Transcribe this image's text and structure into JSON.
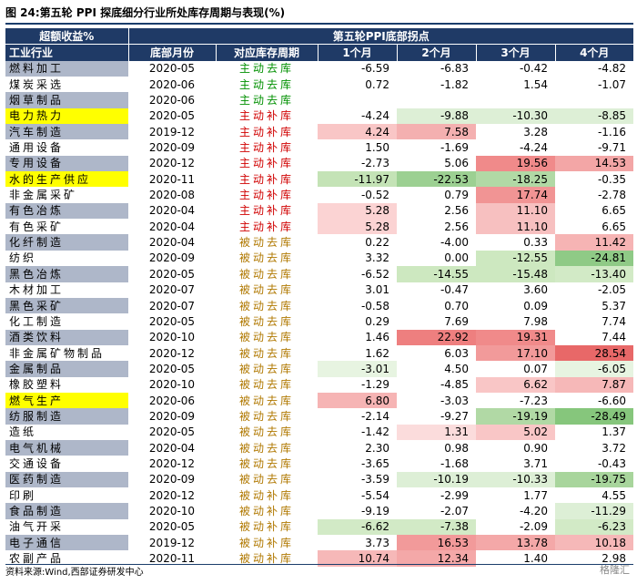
{
  "title": "图 24:第五轮 PPI 探底细分行业所处库存周期与表现(%)",
  "source": "资料来源:Wind,西部证券研发中心",
  "watermark": "格隆汇",
  "colors": {
    "header_bg": "#1f3a66",
    "yellow": "#ffff00",
    "slate": "#aeb7c9",
    "active_destock": "#009000",
    "active_restock": "#d00000",
    "passive_destock": "#b07800"
  },
  "header": {
    "excess_return": "超额收益%",
    "industry": "工业行业",
    "bottom_title": "第五轮PPI底部拐点",
    "bottom_month": "底部月份",
    "stage": "对应库存周期",
    "m1": "1个月",
    "m2": "2个月",
    "m3": "3个月",
    "m4": "4个月"
  },
  "rows": [
    {
      "industry": "燃料加工",
      "month": "2020-05",
      "stage": "主动去库",
      "stage_type": "ad",
      "hl": "slate",
      "v": [
        "-6.59",
        "-6.83",
        "-0.42",
        "-4.82"
      ],
      "bg": [
        "#ffffff",
        "#ffffff",
        "#ffffff",
        "#ffffff"
      ]
    },
    {
      "industry": "煤炭采选",
      "month": "2020-06",
      "stage": "主动去库",
      "stage_type": "ad",
      "hl": "none",
      "v": [
        "0.72",
        "-1.82",
        "1.54",
        "-1.07"
      ],
      "bg": [
        "#ffffff",
        "#ffffff",
        "#ffffff",
        "#ffffff"
      ]
    },
    {
      "industry": "烟草制品",
      "month": "2020-06",
      "stage": "主动去库",
      "stage_type": "ad",
      "hl": "slate",
      "v": [
        "",
        "",
        "",
        ""
      ],
      "bg": [
        "#ffffff",
        "#ffffff",
        "#ffffff",
        "#ffffff"
      ]
    },
    {
      "industry": "电力热力",
      "month": "2020-05",
      "stage": "主动补库",
      "stage_type": "ar",
      "hl": "yellow",
      "v": [
        "-4.24",
        "-9.88",
        "-10.30",
        "-8.85"
      ],
      "bg": [
        "#ffffff",
        "#ddefd6",
        "#ddefd6",
        "#ddefd6"
      ]
    },
    {
      "industry": "汽车制造",
      "month": "2019-12",
      "stage": "主动补库",
      "stage_type": "ar",
      "hl": "slate",
      "v": [
        "4.24",
        "7.58",
        "3.28",
        "-1.16"
      ],
      "bg": [
        "#f9c6c6",
        "#f4b0b0",
        "#ffffff",
        "#ffffff"
      ]
    },
    {
      "industry": "通用设备",
      "month": "2020-09",
      "stage": "主动补库",
      "stage_type": "ar",
      "hl": "none",
      "v": [
        "1.50",
        "-1.69",
        "-4.24",
        "-9.71"
      ],
      "bg": [
        "#ffffff",
        "#ffffff",
        "#ffffff",
        "#ffffff"
      ]
    },
    {
      "industry": "专用设备",
      "month": "2020-12",
      "stage": "主动补库",
      "stage_type": "ar",
      "hl": "slate",
      "v": [
        "-2.73",
        "5.06",
        "19.56",
        "14.53"
      ],
      "bg": [
        "#ffffff",
        "#ffffff",
        "#f08a8a",
        "#f3a6a6"
      ]
    },
    {
      "industry": "水的生产供应",
      "month": "2020-11",
      "stage": "主动补库",
      "stage_type": "ar",
      "hl": "yellow",
      "v": [
        "-11.97",
        "-22.53",
        "-18.25",
        "-0.35"
      ],
      "bg": [
        "#c4e3b6",
        "#9cd092",
        "#b1d9a5",
        "#ffffff"
      ]
    },
    {
      "industry": "非金属采矿",
      "month": "2020-08",
      "stage": "主动补库",
      "stage_type": "ar",
      "hl": "none",
      "v": [
        "-0.52",
        "0.79",
        "17.74",
        "-2.78"
      ],
      "bg": [
        "#ffffff",
        "#ffffff",
        "#f19494",
        "#ffffff"
      ]
    },
    {
      "industry": "有色冶炼",
      "month": "2020-04",
      "stage": "主动补库",
      "stage_type": "ar",
      "hl": "slate",
      "v": [
        "5.28",
        "2.56",
        "11.10",
        "6.65"
      ],
      "bg": [
        "#fbd3d3",
        "#ffffff",
        "#f7c0c0",
        "#ffffff"
      ]
    },
    {
      "industry": "有色采矿",
      "month": "2020-04",
      "stage": "主动补库",
      "stage_type": "ar",
      "hl": "none",
      "v": [
        "5.28",
        "2.56",
        "11.10",
        "6.65"
      ],
      "bg": [
        "#fbd3d3",
        "#ffffff",
        "#f7c0c0",
        "#ffffff"
      ]
    },
    {
      "industry": "化纤制造",
      "month": "2020-04",
      "stage": "被动去库",
      "stage_type": "pd",
      "hl": "slate",
      "v": [
        "0.22",
        "-4.00",
        "0.33",
        "11.42"
      ],
      "bg": [
        "#ffffff",
        "#ffffff",
        "#ffffff",
        "#f6b4b4"
      ]
    },
    {
      "industry": "纺织",
      "month": "2020-09",
      "stage": "被动去库",
      "stage_type": "pd",
      "hl": "none",
      "v": [
        "3.32",
        "0.00",
        "-12.55",
        "-24.81"
      ],
      "bg": [
        "#ffffff",
        "#ffffff",
        "#cde8c0",
        "#8fca86"
      ]
    },
    {
      "industry": "黑色冶炼",
      "month": "2020-05",
      "stage": "被动去库",
      "stage_type": "pd",
      "hl": "slate",
      "v": [
        "-6.52",
        "-14.55",
        "-15.48",
        "-13.40"
      ],
      "bg": [
        "#ffffff",
        "#cde8c0",
        "#cde8c0",
        "#d2eac6"
      ]
    },
    {
      "industry": "木材加工",
      "month": "2020-07",
      "stage": "被动去库",
      "stage_type": "pd",
      "hl": "none",
      "v": [
        "3.01",
        "-0.47",
        "3.60",
        "-2.05"
      ],
      "bg": [
        "#ffffff",
        "#ffffff",
        "#ffffff",
        "#ffffff"
      ]
    },
    {
      "industry": "黑色采矿",
      "month": "2020-07",
      "stage": "被动去库",
      "stage_type": "pd",
      "hl": "slate",
      "v": [
        "-0.58",
        "0.70",
        "0.09",
        "5.37"
      ],
      "bg": [
        "#ffffff",
        "#ffffff",
        "#ffffff",
        "#ffffff"
      ]
    },
    {
      "industry": "化工制造",
      "month": "2020-05",
      "stage": "被动去库",
      "stage_type": "pd",
      "hl": "none",
      "v": [
        "0.29",
        "7.69",
        "7.98",
        "7.74"
      ],
      "bg": [
        "#ffffff",
        "#ffffff",
        "#ffffff",
        "#ffffff"
      ]
    },
    {
      "industry": "酒类饮料",
      "month": "2020-10",
      "stage": "被动去库",
      "stage_type": "pd",
      "hl": "slate",
      "v": [
        "1.46",
        "22.92",
        "19.31",
        "7.44"
      ],
      "bg": [
        "#ffffff",
        "#ee7f7f",
        "#f08a8a",
        "#ffffff"
      ]
    },
    {
      "industry": "非金属矿物制品",
      "month": "2020-12",
      "stage": "被动去库",
      "stage_type": "pd",
      "hl": "none",
      "v": [
        "1.62",
        "6.03",
        "17.10",
        "28.54"
      ],
      "bg": [
        "#ffffff",
        "#ffffff",
        "#f29a9a",
        "#e86868"
      ]
    },
    {
      "industry": "金属制品",
      "month": "2020-05",
      "stage": "被动去库",
      "stage_type": "pd",
      "hl": "slate",
      "v": [
        "-3.01",
        "4.50",
        "0.07",
        "-6.05"
      ],
      "bg": [
        "#e7f4e1",
        "#ffffff",
        "#ffffff",
        "#e7f4e1"
      ]
    },
    {
      "industry": "橡胶塑料",
      "month": "2020-10",
      "stage": "被动去库",
      "stage_type": "pd",
      "hl": "none",
      "v": [
        "-1.29",
        "-4.85",
        "6.62",
        "7.87"
      ],
      "bg": [
        "#ffffff",
        "#ffffff",
        "#f9c6c6",
        "#f6b8b8"
      ]
    },
    {
      "industry": "燃气生产",
      "month": "2020-06",
      "stage": "被动去库",
      "stage_type": "pd",
      "hl": "yellow",
      "v": [
        "6.80",
        "-3.03",
        "-7.23",
        "-6.60"
      ],
      "bg": [
        "#f6b4b4",
        "#ffffff",
        "#ffffff",
        "#ffffff"
      ]
    },
    {
      "industry": "纺服制造",
      "month": "2020-09",
      "stage": "被动去库",
      "stage_type": "pd",
      "hl": "slate",
      "v": [
        "-2.14",
        "-9.27",
        "-19.19",
        "-28.49"
      ],
      "bg": [
        "#ffffff",
        "#ffffff",
        "#b1d9a5",
        "#86c67c"
      ]
    },
    {
      "industry": "造纸",
      "month": "2020-05",
      "stage": "被动去库",
      "stage_type": "pd",
      "hl": "none",
      "v": [
        "-1.42",
        "1.31",
        "5.02",
        "1.37"
      ],
      "bg": [
        "#ffffff",
        "#fbdcdc",
        "#f9c6c6",
        "#ffffff"
      ]
    },
    {
      "industry": "电气机械",
      "month": "2020-04",
      "stage": "被动去库",
      "stage_type": "pd",
      "hl": "slate",
      "v": [
        "2.30",
        "0.98",
        "0.90",
        "3.72"
      ],
      "bg": [
        "#ffffff",
        "#ffffff",
        "#ffffff",
        "#ffffff"
      ]
    },
    {
      "industry": "交通设备",
      "month": "2020-12",
      "stage": "被动去库",
      "stage_type": "pd",
      "hl": "none",
      "v": [
        "-3.65",
        "-1.68",
        "3.71",
        "-0.43"
      ],
      "bg": [
        "#ffffff",
        "#ffffff",
        "#ffffff",
        "#ffffff"
      ]
    },
    {
      "industry": "医药制造",
      "month": "2020-09",
      "stage": "被动去库",
      "stage_type": "pd",
      "hl": "slate",
      "v": [
        "-3.59",
        "-10.19",
        "-10.33",
        "-19.75"
      ],
      "bg": [
        "#ffffff",
        "#ddefd6",
        "#ddefd6",
        "#a8d59c"
      ]
    },
    {
      "industry": "印刷",
      "month": "2020-12",
      "stage": "被动补库",
      "stage_type": "pr",
      "hl": "none",
      "v": [
        "-5.54",
        "-2.99",
        "1.77",
        "4.55"
      ],
      "bg": [
        "#ffffff",
        "#ffffff",
        "#ffffff",
        "#ffffff"
      ]
    },
    {
      "industry": "食品制造",
      "month": "2020-10",
      "stage": "被动补库",
      "stage_type": "pr",
      "hl": "slate",
      "v": [
        "-9.19",
        "-2.07",
        "-4.20",
        "-11.29"
      ],
      "bg": [
        "#ffffff",
        "#ffffff",
        "#ffffff",
        "#ddefd6"
      ]
    },
    {
      "industry": "油气开采",
      "month": "2020-05",
      "stage": "被动补库",
      "stage_type": "pr",
      "hl": "none",
      "v": [
        "-6.62",
        "-7.38",
        "-2.09",
        "-6.23"
      ],
      "bg": [
        "#d2eac6",
        "#d2eac6",
        "#ffffff",
        "#d2eac6"
      ]
    },
    {
      "industry": "电子通信",
      "month": "2019-12",
      "stage": "被动补库",
      "stage_type": "pr",
      "hl": "slate",
      "v": [
        "3.73",
        "16.53",
        "13.78",
        "10.18"
      ],
      "bg": [
        "#ffffff",
        "#f29a9a",
        "#f4a8a8",
        "#f6b8b8"
      ]
    },
    {
      "industry": "农副产品",
      "month": "2020-11",
      "stage": "被动补库",
      "stage_type": "pr",
      "hl": "none",
      "v": [
        "10.74",
        "12.34",
        "1.40",
        "2.98"
      ],
      "bg": [
        "#f6b8b8",
        "#f4a8a8",
        "#ffffff",
        "#ffffff"
      ]
    }
  ]
}
